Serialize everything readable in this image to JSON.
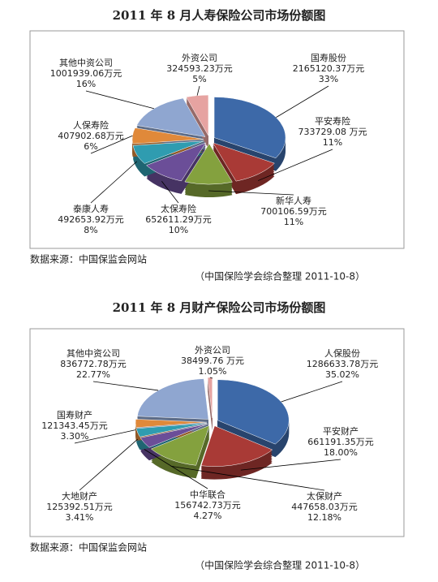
{
  "chart_data": [
    {
      "type": "pie",
      "title": "2011 年 8 月人寿保险公司市场份额图",
      "categories": [
        "国寿股份",
        "平安寿险",
        "新华人寿",
        "太保寿险",
        "泰康人寿",
        "人保寿险",
        "其他中资公司",
        "外资公司"
      ],
      "values": [
        2165120.37,
        733729.08,
        700106.59,
        652611.29,
        492653.92,
        407902.68,
        1001939.06,
        324593.23
      ],
      "value_labels": [
        "2165120.37万元",
        "733729.08 万元",
        "700106.59万元",
        "652611.29万元",
        "492653.92万元",
        "407902.68万元",
        "1001939.06万元",
        "324593.23万元"
      ],
      "shares": [
        33,
        11,
        11,
        10,
        8,
        6,
        16,
        5
      ],
      "share_labels": [
        "33%",
        "11%",
        "11%",
        "10%",
        "8%",
        "6%",
        "16%",
        "5%"
      ],
      "colors": [
        "#3d69a8",
        "#a93a36",
        "#84a13e",
        "#6b4e98",
        "#2f9cb0",
        "#e0893a",
        "#8fa6d0",
        "#e6a3a1"
      ],
      "source": "数据来源：中国保监会网站",
      "note": "（中国保险学会综合整理  2011-10-8）"
    },
    {
      "type": "pie",
      "title": "2011 年 8 月财产保险公司市场份额图",
      "categories": [
        "人保股份",
        "平安财产",
        "太保财产",
        "中华联合",
        "大地财产",
        "国寿财产",
        "其他中资公司",
        "外资公司"
      ],
      "values": [
        1286633.78,
        661191.35,
        447658.03,
        156742.73,
        125392.51,
        121343.45,
        836772.78,
        38499.76
      ],
      "value_labels": [
        "1286633.78万元",
        "661191.35万元",
        "447658.03万元",
        "156742.73万元",
        "125392.51万元",
        "121343.45万元",
        "836772.78万元",
        "38499.76 万元"
      ],
      "shares": [
        35.02,
        18.0,
        12.18,
        4.27,
        3.41,
        3.3,
        22.77,
        1.05
      ],
      "share_labels": [
        "35.02%",
        "18.00%",
        "12.18%",
        "4.27%",
        "3.41%",
        "3.30%",
        "22.77%",
        "1.05%"
      ],
      "colors": [
        "#3d69a8",
        "#a93a36",
        "#84a13e",
        "#6b4e98",
        "#2f9cb0",
        "#e0893a",
        "#8fa6d0",
        "#e6a3a1"
      ],
      "source": "数据来源：中国保监会网站",
      "note": "（中国保险学会综合整理  2011-10-8）"
    }
  ]
}
